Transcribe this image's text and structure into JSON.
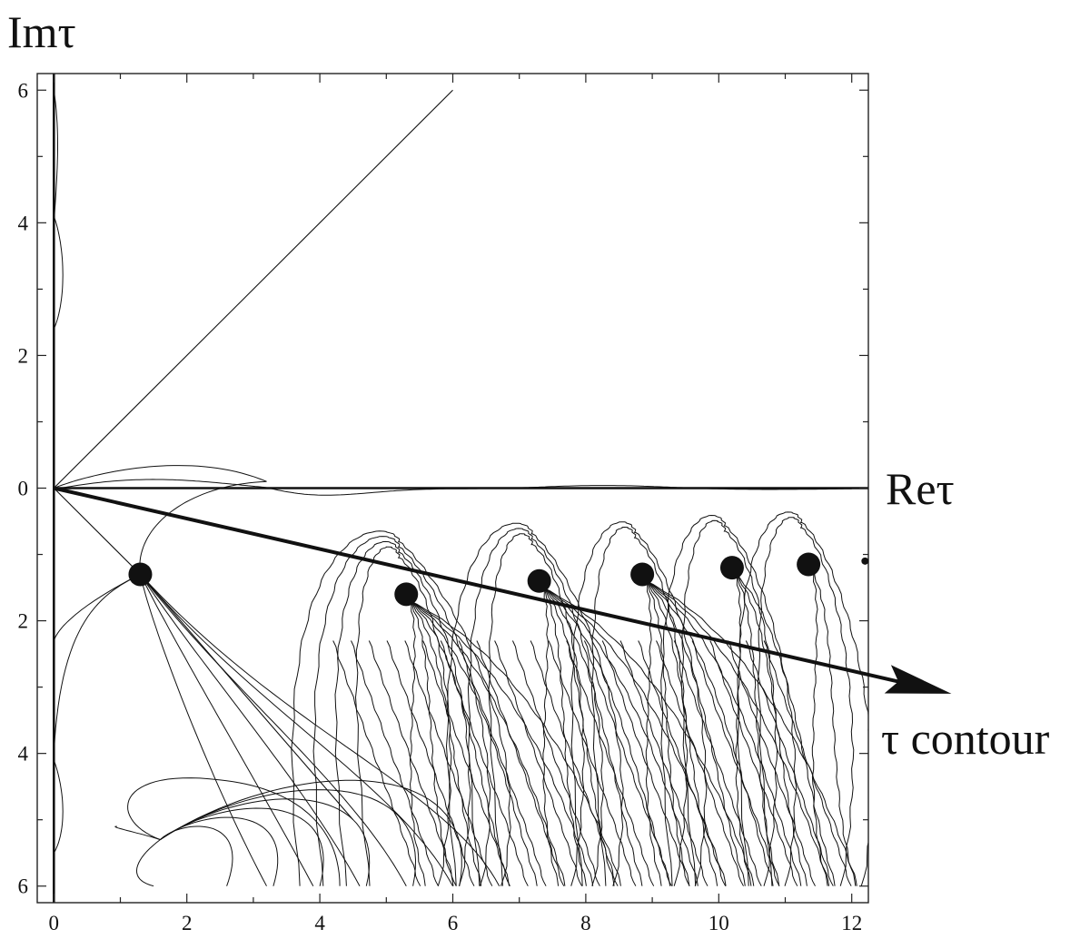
{
  "chart_data": {
    "type": "line",
    "title": "",
    "xlabel": "Reτ",
    "ylabel": "Imτ",
    "xlim": [
      -0.25,
      12.25
    ],
    "ylim": [
      6.25,
      -6.25
    ],
    "x_ticks": [
      {
        "value": 0,
        "label": "0"
      },
      {
        "value": 2,
        "label": "2"
      },
      {
        "value": 4,
        "label": "4"
      },
      {
        "value": 6,
        "label": "6"
      },
      {
        "value": 8,
        "label": "8"
      },
      {
        "value": 10,
        "label": "10"
      },
      {
        "value": 12,
        "label": "12"
      }
    ],
    "y_ticks": [
      {
        "value": -6,
        "label": "6"
      },
      {
        "value": -4,
        "label": "4"
      },
      {
        "value": -2,
        "label": "2"
      },
      {
        "value": 0,
        "label": "0"
      },
      {
        "value": 2,
        "label": "2"
      },
      {
        "value": 4,
        "label": "4"
      },
      {
        "value": 6,
        "label": "6"
      }
    ],
    "grid": false,
    "saddle_points": [
      {
        "x": 1.3,
        "y": 1.3
      },
      {
        "x": 5.3,
        "y": 1.6
      },
      {
        "x": 7.3,
        "y": 1.4
      },
      {
        "x": 8.85,
        "y": 1.3
      },
      {
        "x": 10.2,
        "y": 1.2
      },
      {
        "x": 11.35,
        "y": 1.15
      }
    ],
    "contour": {
      "label": "τ contour",
      "from": {
        "x": 0,
        "y": 0
      },
      "to": {
        "x": 13.5,
        "y": 3.1
      }
    },
    "diagonal_line": {
      "from": {
        "x": 0,
        "y": 0
      },
      "to": {
        "x": 6,
        "y": -6
      }
    }
  }
}
